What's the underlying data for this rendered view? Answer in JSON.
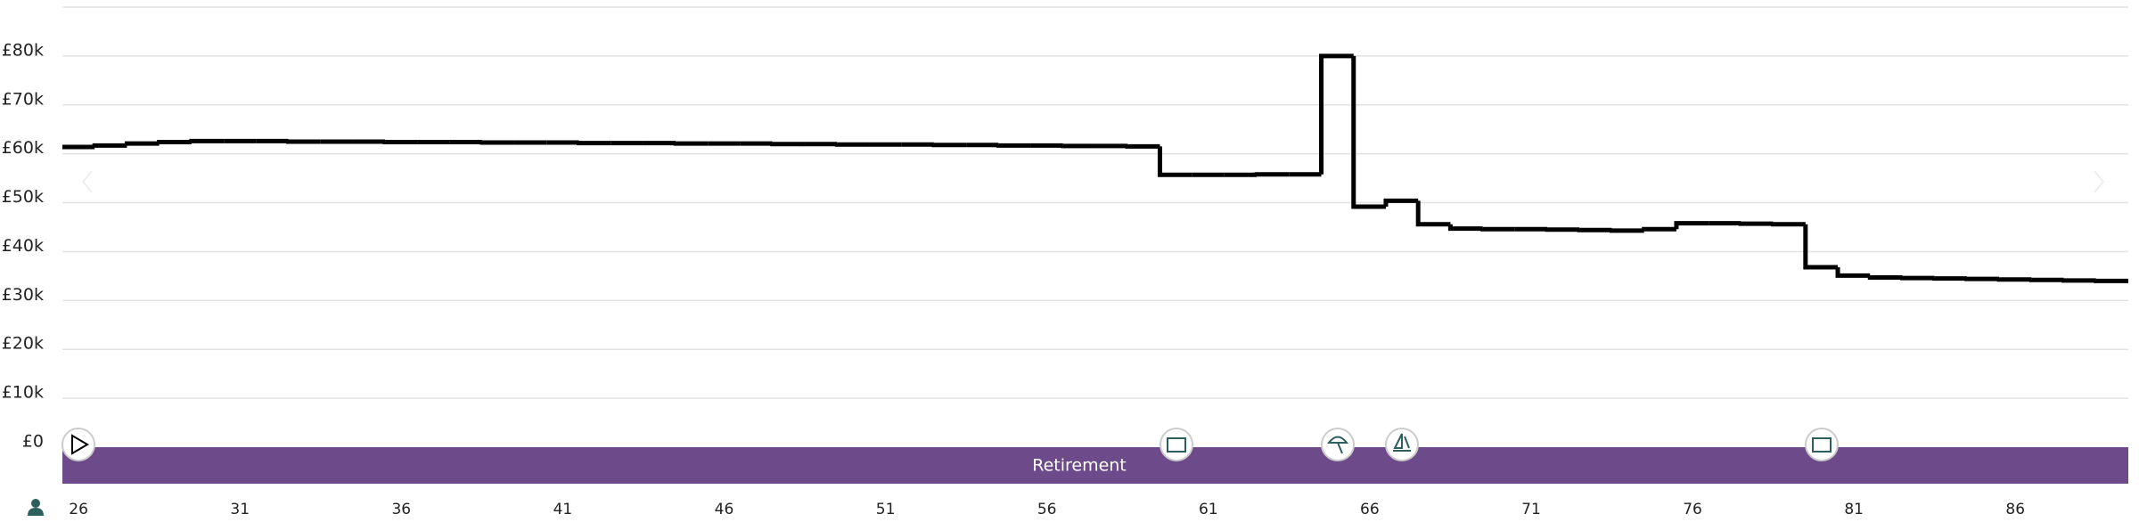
{
  "chart_data": {
    "type": "step",
    "x": [
      26,
      27,
      28,
      29,
      30,
      31,
      32,
      33,
      34,
      35,
      36,
      37,
      38,
      39,
      40,
      41,
      42,
      43,
      44,
      45,
      46,
      47,
      48,
      49,
      50,
      51,
      52,
      53,
      54,
      55,
      56,
      57,
      58,
      59,
      60,
      61,
      62,
      63,
      64,
      65,
      66,
      67,
      68,
      69,
      70,
      71,
      72,
      73,
      74,
      75,
      76,
      77,
      78,
      79,
      80,
      81,
      82,
      83,
      84,
      85,
      86,
      87,
      88,
      89
    ],
    "values": [
      61400,
      61700,
      62100,
      62400,
      62600,
      62600,
      62600,
      62500,
      62500,
      62500,
      62400,
      62400,
      62400,
      62300,
      62300,
      62300,
      62200,
      62200,
      62200,
      62100,
      62100,
      62100,
      62000,
      62000,
      61900,
      61900,
      61900,
      61800,
      61800,
      61700,
      61700,
      61600,
      61600,
      61500,
      55700,
      55700,
      55700,
      55800,
      55800,
      80000,
      49200,
      50400,
      45600,
      44700,
      44600,
      44600,
      44500,
      44400,
      44300,
      44600,
      45800,
      45800,
      45700,
      45600,
      36800,
      35100,
      34700,
      34600,
      34500,
      34400,
      34300,
      34200,
      34100,
      34000
    ],
    "color": "#000000",
    "xlim": [
      25.5,
      89.5
    ],
    "xticks": [
      26,
      31,
      36,
      41,
      46,
      51,
      56,
      61,
      66,
      71,
      76,
      81,
      86
    ],
    "ylim": [
      0,
      90000
    ],
    "yticks": [
      {
        "value": 0,
        "label": "£0"
      },
      {
        "value": 10000,
        "label": "£10k"
      },
      {
        "value": 20000,
        "label": "£20k"
      },
      {
        "value": 30000,
        "label": "£30k"
      },
      {
        "value": 40000,
        "label": "£40k"
      },
      {
        "value": 50000,
        "label": "£50k"
      },
      {
        "value": 60000,
        "label": "£60k"
      },
      {
        "value": 70000,
        "label": "£70k"
      },
      {
        "value": 80000,
        "label": "£80k"
      }
    ],
    "grid": true,
    "timeline_label": "Retirement"
  }
}
